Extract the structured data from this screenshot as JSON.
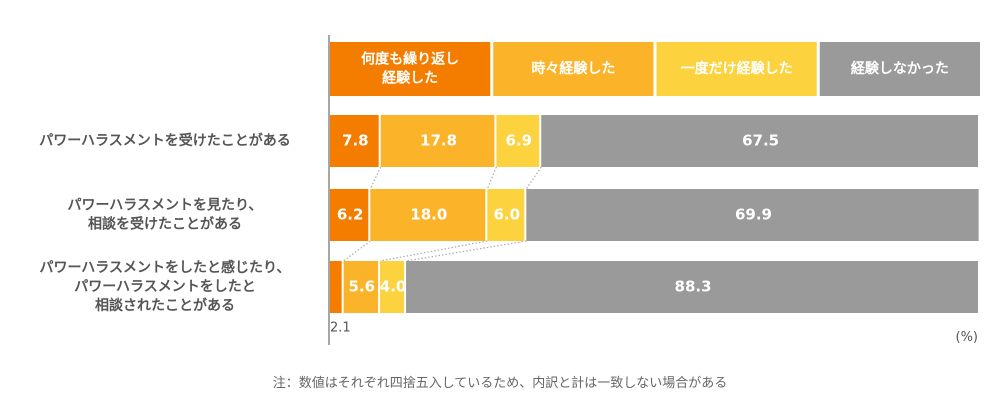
{
  "chart_data": {
    "type": "bar",
    "orientation": "horizontal",
    "stacked": true,
    "categories": [
      [
        "パワーハラスメントを受けたことがある"
      ],
      [
        "パワーハラスメントを見たり、",
        "相談を受けたことがある"
      ],
      [
        "パワーハラスメントをしたと感じたり、",
        "パワーハラスメントをしたと",
        "相談されたことがある"
      ]
    ],
    "series": [
      {
        "name": [
          "何度も繰り返し",
          "経験した"
        ],
        "values": [
          7.8,
          6.2,
          2.1
        ],
        "color": "#f47d00"
      },
      {
        "name": [
          "時々経験した"
        ],
        "values": [
          17.8,
          18.0,
          5.6
        ],
        "color": "#fbb32a"
      },
      {
        "name": [
          "一度だけ経験した"
        ],
        "values": [
          6.9,
          6.0,
          4.0
        ],
        "color": "#fcd23f"
      },
      {
        "name": [
          "経験しなかった"
        ],
        "values": [
          67.5,
          69.9,
          88.3
        ],
        "color": "#9a9a9a"
      }
    ],
    "data_labels": [
      [
        "7.8",
        "17.8",
        "6.9",
        "67.5"
      ],
      [
        "6.2",
        "18.0",
        "6.0",
        "69.9"
      ],
      [
        "2.1",
        "5.6",
        "4.0",
        "88.3"
      ]
    ],
    "outside_labels": [
      {
        "row": 2,
        "series": 0
      }
    ],
    "unit": "(%)",
    "xlim": [
      0,
      100
    ],
    "grid": false,
    "legend_placement": "top"
  },
  "note": "注：数値はそれぞれ四捨五入しているため、内訳と計は一致しない場合がある"
}
